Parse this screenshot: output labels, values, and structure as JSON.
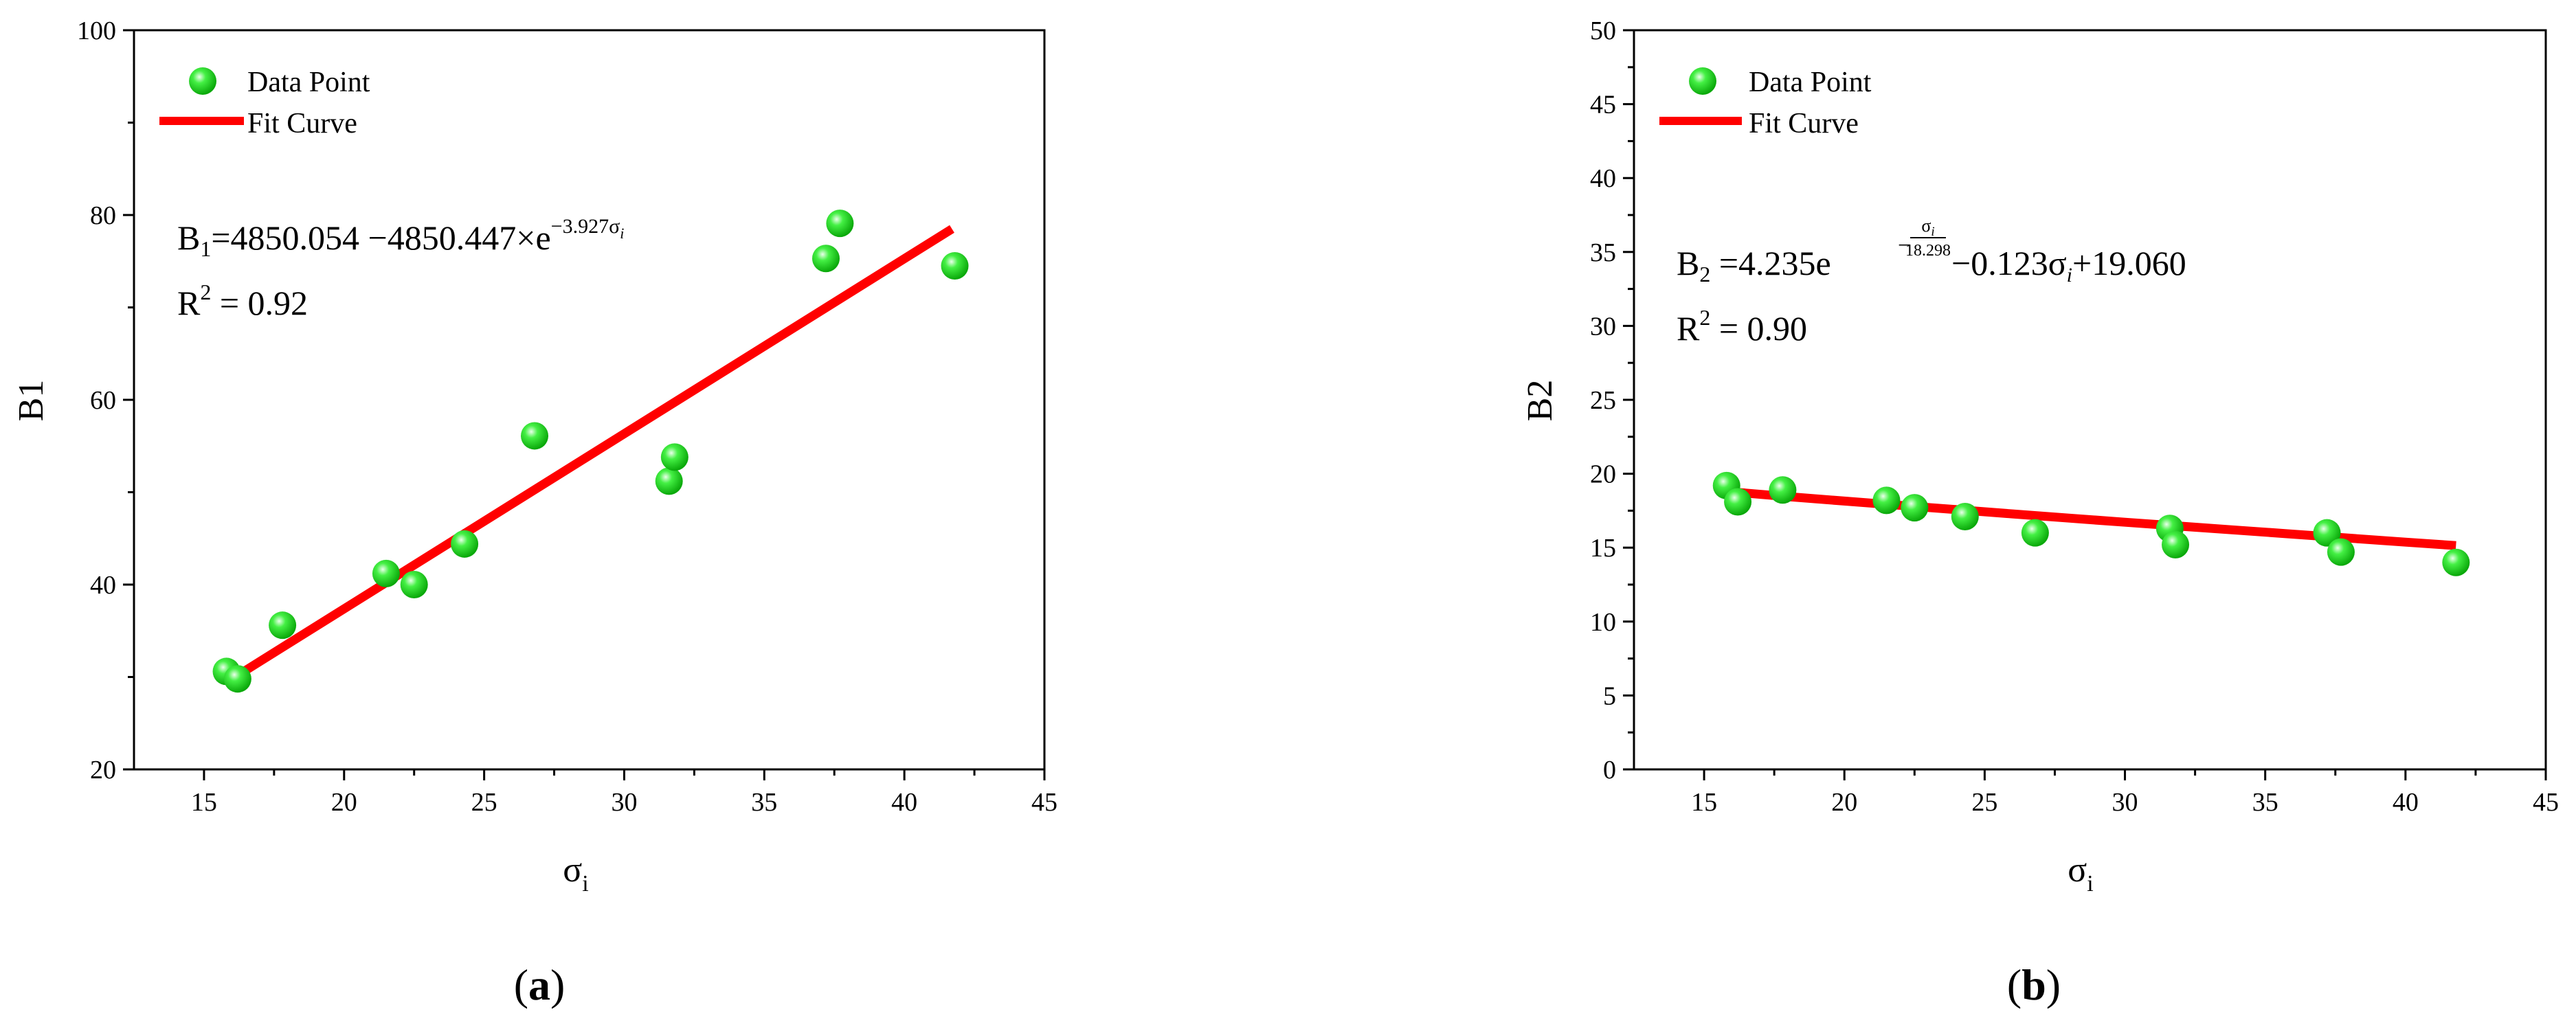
{
  "chart_data": [
    {
      "type": "scatter",
      "panel_label": "a",
      "xlabel": "σ",
      "xlabel_sub": "i",
      "ylabel": "B1",
      "xlim": [
        12.5,
        45
      ],
      "ylim": [
        20,
        100
      ],
      "xticks": [
        15,
        20,
        25,
        30,
        35,
        40,
        45
      ],
      "yticks": [
        20,
        40,
        60,
        80,
        100
      ],
      "legend": {
        "position": "top-left",
        "entries": [
          "Data Point",
          "Fit Curve"
        ]
      },
      "colors": {
        "points": "#22e622",
        "fit": "#ff0000"
      },
      "equation": {
        "lhs": "B",
        "lhs_sub": "1",
        "rhs": "=4850.054  −4850.447×e",
        "exponent": "−3.927σ",
        "exponent_sub": "i"
      },
      "r_squared": {
        "label": "R",
        "sup": "2",
        "value": " = 0.92"
      },
      "series": [
        {
          "name": "Data Point",
          "kind": "scatter",
          "x": [
            15.8,
            16.2,
            17.8,
            21.5,
            22.5,
            24.3,
            26.8,
            31.6,
            31.8,
            37.2,
            37.7,
            41.8
          ],
          "y": [
            30.6,
            29.8,
            35.6,
            41.2,
            40.0,
            44.4,
            56.1,
            51.2,
            53.8,
            75.3,
            79.1,
            74.5
          ]
        },
        {
          "name": "Fit Curve",
          "kind": "line",
          "x": [
            16.0,
            41.7
          ],
          "y": [
            29.8,
            78.5
          ]
        }
      ]
    },
    {
      "type": "scatter",
      "panel_label": "b",
      "xlabel": "σ",
      "xlabel_sub": "i",
      "ylabel": "B2",
      "xlim": [
        12.5,
        45
      ],
      "ylim": [
        0,
        50
      ],
      "xticks": [
        15,
        20,
        25,
        30,
        35,
        40,
        45
      ],
      "yticks": [
        0,
        5,
        10,
        15,
        20,
        25,
        30,
        35,
        40,
        45,
        50
      ],
      "legend": {
        "position": "top-left",
        "entries": [
          "Data Point",
          "Fit Curve"
        ]
      },
      "colors": {
        "points": "#22e622",
        "fit": "#ff0000"
      },
      "equation": {
        "lhs": "B",
        "lhs_sub": "2",
        "rhs_a": " =4.235e",
        "frac_num": "σ",
        "frac_num_sub": "i",
        "frac_den": "18.298",
        "rhs_b": "−0.123σ",
        "rhs_b_sub": "i",
        "rhs_c": "+19.060"
      },
      "r_squared": {
        "label": "R",
        "sup": "2",
        "value": " = 0.90"
      },
      "series": [
        {
          "name": "Data Point",
          "kind": "scatter",
          "x": [
            15.8,
            16.2,
            17.8,
            21.5,
            22.5,
            24.3,
            26.8,
            31.6,
            31.8,
            37.2,
            37.7,
            41.8
          ],
          "y": [
            19.2,
            18.1,
            18.9,
            18.2,
            17.7,
            17.1,
            16.0,
            16.3,
            15.2,
            16.0,
            14.7,
            14.0
          ]
        },
        {
          "name": "Fit Curve",
          "kind": "line",
          "x": [
            16,
            18,
            20,
            22,
            24,
            26,
            28,
            30,
            32,
            34,
            36,
            38,
            40,
            41.8
          ],
          "y": [
            18.77,
            18.45,
            18.15,
            17.86,
            17.57,
            17.28,
            17.0,
            16.72,
            16.45,
            16.18,
            15.91,
            15.64,
            15.37,
            15.14
          ]
        }
      ]
    }
  ]
}
